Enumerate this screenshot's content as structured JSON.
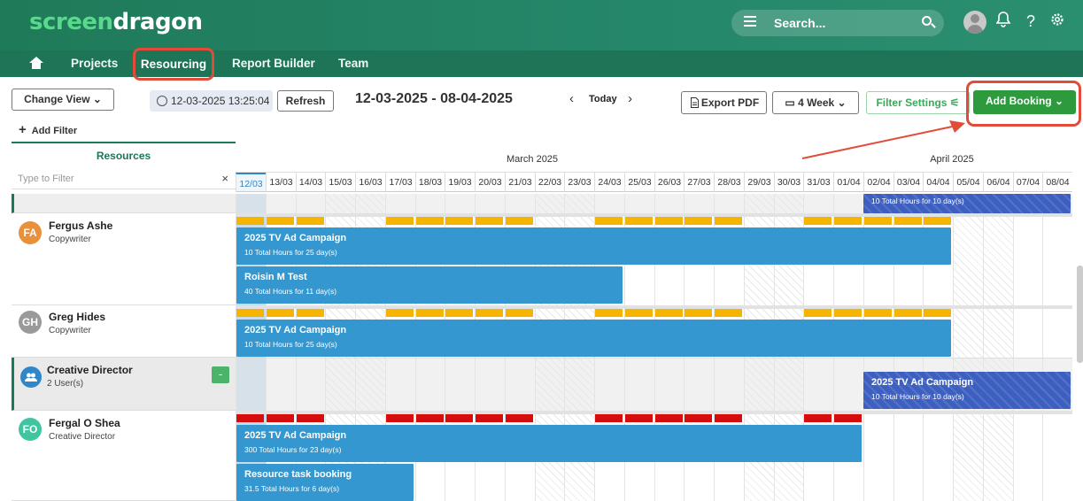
{
  "header": {
    "logo_part1": "screen",
    "logo_part2": "dragon",
    "search_placeholder": "Search...",
    "help_glyph": "?",
    "icons": [
      "menu-icon",
      "search-icon",
      "avatar",
      "bell-icon",
      "help-icon",
      "gear-icon"
    ]
  },
  "nav": {
    "home_icon": "home-icon",
    "items": [
      "Projects",
      "Resourcing",
      "Report Builder",
      "Team"
    ],
    "active": "Resourcing"
  },
  "toolbar": {
    "change_view": "Change View",
    "timestamp": "12-03-2025 13:25:04",
    "refresh": "Refresh",
    "date_range": "12-03-2025 - 08-04-2025",
    "prev_glyph": "‹",
    "next_glyph": "›",
    "today": "Today",
    "export_pdf": "Export PDF",
    "week_select": "4 Week",
    "filter_settings": "Filter Settings",
    "add_booking": "Add Booking",
    "add_filter": "Add Filter"
  },
  "left_panel": {
    "title": "Resources",
    "filter_placeholder": "Type to Filter",
    "clear_glyph": "×",
    "resources": [
      {
        "initials": "FA",
        "name": "Fergus Ashe",
        "role": "Copywriter",
        "color": "#e8903a"
      },
      {
        "initials": "GH",
        "name": "Greg Hides",
        "role": "Copywriter",
        "color": "#9a9a9a"
      },
      {
        "initials": "",
        "name": "Creative Director",
        "role": "2 User(s)",
        "color": "#2f87c9",
        "collapse": "-"
      },
      {
        "initials": "FO",
        "name": "Fergal O Shea",
        "role": "Creative Director",
        "color": "#3fc5a0"
      }
    ]
  },
  "timeline": {
    "months": [
      {
        "label": "March 2025"
      },
      {
        "label": "April 2025"
      }
    ],
    "days": [
      "12/03",
      "13/03",
      "14/03",
      "15/03",
      "16/03",
      "17/03",
      "18/03",
      "19/03",
      "20/03",
      "21/03",
      "22/03",
      "23/03",
      "24/03",
      "25/03",
      "26/03",
      "27/03",
      "28/03",
      "29/03",
      "30/03",
      "31/03",
      "01/04",
      "02/04",
      "03/04",
      "04/04",
      "05/04",
      "06/04",
      "07/04",
      "08/04"
    ],
    "weekend_days": [
      3,
      4,
      10,
      11,
      17,
      18,
      24,
      25
    ],
    "today_index": 0
  },
  "bookings": [
    {
      "row": 0,
      "title": "",
      "subtitle": "10 Total Hours for 10 day(s)",
      "color": "#3d5fbf",
      "hatched": true
    },
    {
      "row": 1,
      "title": "2025 TV Ad Campaign",
      "subtitle": "10 Total Hours for 25 day(s)",
      "color": "#3497cf"
    },
    {
      "row": 1,
      "title": "Roisin M Test",
      "subtitle": "40 Total Hours for 11 day(s)",
      "color": "#3497cf"
    },
    {
      "row": 2,
      "title": "2025 TV Ad Campaign",
      "subtitle": "10 Total Hours for 25 day(s)",
      "color": "#3497cf"
    },
    {
      "row": 3,
      "title": "2025 TV Ad Campaign",
      "subtitle": "10 Total Hours for 10 day(s)",
      "color": "#3d5fbf",
      "hatched": true
    },
    {
      "row": 4,
      "title": "2025 TV Ad Campaign",
      "subtitle": "300 Total Hours for 23 day(s)",
      "color": "#3497cf"
    },
    {
      "row": 4,
      "title": "Resource task booking",
      "subtitle": "31.5 Total Hours for 6 day(s)",
      "color": "#3497cf"
    }
  ],
  "colors": {
    "ok": "#f5b400",
    "over": "#d60d0d",
    "accent": "#2d9a3d"
  }
}
